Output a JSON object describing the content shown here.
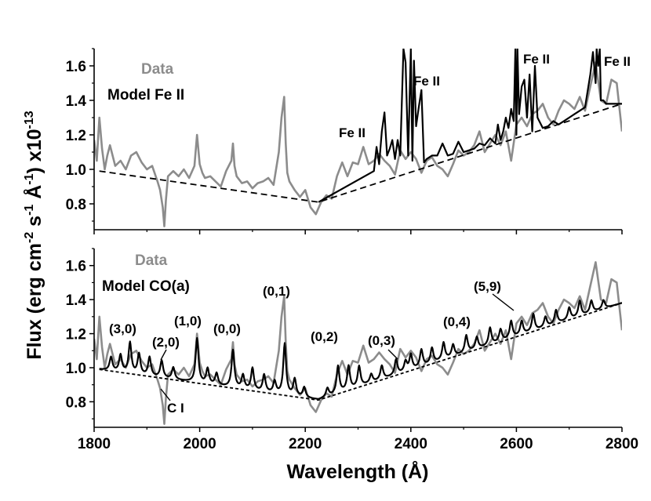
{
  "chart_data": [
    {
      "type": "line",
      "panel": "top",
      "xlim": [
        1800,
        2800
      ],
      "ylim": [
        0.65,
        1.7
      ],
      "yticks": [
        "0.8",
        "1.0",
        "1.2",
        "1.4",
        "1.6"
      ],
      "ytick_values": [
        0.8,
        1.0,
        1.2,
        1.4,
        1.6
      ],
      "legend": [
        {
          "label": "Data",
          "color": "#8c8c8c"
        },
        {
          "label": "Model Fe II",
          "color": "#000000"
        }
      ],
      "annotations": [
        "Fe II",
        "Fe II",
        "Fe II",
        "Fe II"
      ],
      "series": [
        {
          "name": "Data",
          "color": "#8c8c8c",
          "x": [
            1800,
            1805,
            1810,
            1815,
            1820,
            1825,
            1830,
            1840,
            1850,
            1860,
            1870,
            1880,
            1890,
            1900,
            1910,
            1920,
            1925,
            1930,
            1933,
            1936,
            1940,
            1950,
            1960,
            1970,
            1980,
            1990,
            1995,
            2000,
            2005,
            2010,
            2020,
            2030,
            2040,
            2050,
            2060,
            2063,
            2066,
            2070,
            2080,
            2090,
            2100,
            2110,
            2120,
            2130,
            2140,
            2150,
            2155,
            2160,
            2163,
            2166,
            2170,
            2180,
            2190,
            2200,
            2210,
            2220,
            2230,
            2240,
            2250,
            2260,
            2270,
            2280,
            2290,
            2300,
            2310,
            2320,
            2330,
            2340,
            2350,
            2360,
            2370,
            2380,
            2390,
            2400,
            2410,
            2420,
            2430,
            2440,
            2450,
            2460,
            2470,
            2480,
            2490,
            2500,
            2510,
            2520,
            2530,
            2540,
            2550,
            2560,
            2570,
            2580,
            2590,
            2600,
            2610,
            2620,
            2630,
            2640,
            2650,
            2660,
            2670,
            2680,
            2690,
            2700,
            2710,
            2720,
            2730,
            2740,
            2750,
            2760,
            2770,
            2780,
            2790,
            2800
          ],
          "y": [
            1.17,
            1.05,
            1.3,
            1.12,
            1.0,
            1.08,
            1.14,
            1.02,
            1.05,
            1.0,
            1.08,
            1.1,
            1.04,
            1.0,
            1.02,
            0.93,
            0.88,
            0.78,
            0.67,
            0.82,
            0.96,
            0.99,
            0.96,
            1.0,
            0.95,
            1.02,
            1.2,
            1.03,
            0.98,
            0.95,
            0.96,
            0.93,
            0.9,
            0.99,
            1.05,
            1.15,
            1.02,
            0.96,
            0.92,
            0.93,
            0.89,
            0.92,
            0.93,
            0.95,
            0.91,
            1.1,
            1.3,
            1.42,
            1.15,
            0.98,
            0.93,
            0.88,
            0.84,
            0.88,
            0.78,
            0.74,
            0.81,
            0.85,
            0.83,
            0.96,
            1.04,
            0.96,
            1.04,
            1.03,
            1.13,
            1.03,
            1.05,
            1.09,
            1.05,
            1.02,
            0.97,
            1.11,
            1.06,
            1.1,
            1.06,
            0.98,
            1.05,
            1.07,
            1.02,
            1.0,
            0.96,
            1.03,
            1.11,
            1.08,
            1.1,
            1.14,
            1.22,
            1.1,
            1.15,
            1.2,
            1.14,
            1.22,
            1.05,
            1.26,
            1.3,
            1.25,
            1.32,
            1.34,
            1.38,
            1.3,
            1.26,
            1.34,
            1.4,
            1.38,
            1.35,
            1.42,
            1.34,
            1.48,
            1.62,
            1.4,
            1.38,
            1.52,
            1.5,
            1.22
          ]
        },
        {
          "name": "Model Fe II",
          "color": "#000000",
          "x": [
            2225,
            2330,
            2335,
            2340,
            2345,
            2350,
            2355,
            2360,
            2365,
            2370,
            2375,
            2380,
            2383,
            2386,
            2390,
            2395,
            2400,
            2403,
            2406,
            2410,
            2415,
            2420,
            2425,
            2430,
            2440,
            2450,
            2460,
            2470,
            2480,
            2490,
            2500,
            2510,
            2520,
            2530,
            2540,
            2550,
            2560,
            2565,
            2570,
            2575,
            2580,
            2585,
            2590,
            2595,
            2598,
            2600,
            2602,
            2605,
            2610,
            2615,
            2620,
            2625,
            2630,
            2635,
            2640,
            2650,
            2660,
            2670,
            2680,
            2690,
            2700,
            2710,
            2720,
            2730,
            2740,
            2745,
            2750,
            2752,
            2755,
            2758,
            2760,
            2765,
            2770,
            2780,
            2790,
            2800
          ],
          "y": [
            0.81,
            0.99,
            1.13,
            1.03,
            1.22,
            1.33,
            1.08,
            1.12,
            1.17,
            1.06,
            1.17,
            1.08,
            1.4,
            1.7,
            1.62,
            1.08,
            1.7,
            1.05,
            1.63,
            1.25,
            1.36,
            1.46,
            1.04,
            1.06,
            1.08,
            1.08,
            1.15,
            1.08,
            1.09,
            1.16,
            1.1,
            1.11,
            1.12,
            1.15,
            1.14,
            1.18,
            1.15,
            1.26,
            1.17,
            1.22,
            1.3,
            1.24,
            1.35,
            1.28,
            1.7,
            1.2,
            1.7,
            1.32,
            1.48,
            1.52,
            1.3,
            1.55,
            1.22,
            1.6,
            1.3,
            1.24,
            1.25,
            1.28,
            1.26,
            1.28,
            1.3,
            1.32,
            1.34,
            1.36,
            1.55,
            1.68,
            1.5,
            1.7,
            1.6,
            1.7,
            1.4,
            1.4,
            1.38,
            1.38,
            1.38,
            1.38
          ]
        },
        {
          "name": "Continuum",
          "color": "#000000",
          "dashed": true,
          "x": [
            1810,
            2225,
            2800
          ],
          "y": [
            0.99,
            0.81,
            1.38
          ]
        }
      ]
    },
    {
      "type": "line",
      "panel": "bottom",
      "xlim": [
        1800,
        2800
      ],
      "ylim": [
        0.65,
        1.7
      ],
      "xticks": [
        "1800",
        "2000",
        "2200",
        "2400",
        "2600",
        "2800"
      ],
      "xtick_values": [
        1800,
        2000,
        2200,
        2400,
        2600,
        2800
      ],
      "yticks": [
        "0.8",
        "1.0",
        "1.2",
        "1.4",
        "1.6"
      ],
      "ytick_values": [
        0.8,
        1.0,
        1.2,
        1.4,
        1.6
      ],
      "legend": [
        {
          "label": "Data",
          "color": "#8c8c8c"
        },
        {
          "label": "Model CO(a)",
          "color": "#000000"
        }
      ],
      "annotations": [
        "(3,0)",
        "(2,0)",
        "(1,0)",
        "(0,0)",
        "(0,1)",
        "(0,2)",
        "(0,3)",
        "(0,4)",
        "(5,9)",
        "C I"
      ],
      "series": [
        {
          "name": "Data",
          "color": "#8c8c8c",
          "x": [
            1800,
            1805,
            1810,
            1815,
            1820,
            1825,
            1830,
            1840,
            1850,
            1860,
            1870,
            1880,
            1890,
            1900,
            1910,
            1920,
            1925,
            1930,
            1933,
            1936,
            1940,
            1950,
            1960,
            1970,
            1980,
            1990,
            1995,
            2000,
            2005,
            2010,
            2020,
            2030,
            2040,
            2050,
            2060,
            2063,
            2066,
            2070,
            2080,
            2090,
            2100,
            2110,
            2120,
            2130,
            2140,
            2150,
            2155,
            2160,
            2163,
            2166,
            2170,
            2180,
            2190,
            2200,
            2210,
            2220,
            2230,
            2240,
            2250,
            2260,
            2270,
            2280,
            2290,
            2300,
            2310,
            2320,
            2330,
            2340,
            2350,
            2360,
            2370,
            2380,
            2390,
            2400,
            2410,
            2420,
            2430,
            2440,
            2450,
            2460,
            2470,
            2480,
            2490,
            2500,
            2510,
            2520,
            2530,
            2540,
            2550,
            2560,
            2570,
            2580,
            2590,
            2600,
            2610,
            2620,
            2630,
            2640,
            2650,
            2660,
            2670,
            2680,
            2690,
            2700,
            2710,
            2720,
            2730,
            2740,
            2750,
            2760,
            2770,
            2780,
            2790,
            2800
          ],
          "y": [
            1.17,
            1.05,
            1.3,
            1.12,
            1.0,
            1.08,
            1.14,
            1.02,
            1.05,
            1.0,
            1.08,
            1.1,
            1.04,
            1.0,
            1.02,
            0.93,
            0.88,
            0.78,
            0.67,
            0.82,
            0.96,
            0.99,
            0.96,
            1.0,
            0.95,
            1.02,
            1.2,
            1.03,
            0.98,
            0.95,
            0.96,
            0.93,
            0.9,
            0.99,
            1.05,
            1.15,
            1.02,
            0.96,
            0.92,
            0.93,
            0.89,
            0.92,
            0.93,
            0.95,
            0.91,
            1.1,
            1.3,
            1.42,
            1.15,
            0.98,
            0.93,
            0.88,
            0.84,
            0.88,
            0.78,
            0.74,
            0.81,
            0.85,
            0.83,
            0.96,
            1.04,
            0.96,
            1.04,
            1.03,
            1.13,
            1.03,
            1.05,
            1.09,
            1.05,
            1.02,
            0.97,
            1.11,
            1.06,
            1.1,
            1.06,
            0.98,
            1.05,
            1.07,
            1.02,
            1.0,
            0.96,
            1.03,
            1.11,
            1.08,
            1.1,
            1.14,
            1.22,
            1.1,
            1.15,
            1.2,
            1.14,
            1.22,
            1.05,
            1.26,
            1.3,
            1.25,
            1.32,
            1.34,
            1.38,
            1.3,
            1.26,
            1.34,
            1.4,
            1.38,
            1.35,
            1.42,
            1.34,
            1.48,
            1.62,
            1.4,
            1.38,
            1.52,
            1.5,
            1.22
          ]
        },
        {
          "name": "Model CO(a)",
          "color": "#000000",
          "continuum": {
            "x": [
              1810,
              2225,
              2800
            ],
            "y": [
              0.99,
              0.81,
              1.38
            ]
          },
          "peaks": [
            {
              "x": 1832,
              "h": 0.08
            },
            {
              "x": 1850,
              "h": 0.1
            },
            {
              "x": 1868,
              "h": 0.18
            },
            {
              "x": 1885,
              "h": 0.12
            },
            {
              "x": 1905,
              "h": 0.11
            },
            {
              "x": 1928,
              "h": 0.1
            },
            {
              "x": 1950,
              "h": 0.07
            },
            {
              "x": 1995,
              "h": 0.26
            },
            {
              "x": 2015,
              "h": 0.09
            },
            {
              "x": 2032,
              "h": 0.07
            },
            {
              "x": 2063,
              "h": 0.22
            },
            {
              "x": 2082,
              "h": 0.08
            },
            {
              "x": 2100,
              "h": 0.13
            },
            {
              "x": 2122,
              "h": 0.1
            },
            {
              "x": 2142,
              "h": 0.07
            },
            {
              "x": 2161,
              "h": 0.3
            },
            {
              "x": 2180,
              "h": 0.1
            },
            {
              "x": 2198,
              "h": 0.06
            },
            {
              "x": 2242,
              "h": 0.05
            },
            {
              "x": 2262,
              "h": 0.16
            },
            {
              "x": 2282,
              "h": 0.14
            },
            {
              "x": 2302,
              "h": 0.12
            },
            {
              "x": 2325,
              "h": 0.05
            },
            {
              "x": 2345,
              "h": 0.08
            },
            {
              "x": 2372,
              "h": 0.09
            },
            {
              "x": 2390,
              "h": 0.06
            },
            {
              "x": 2400,
              "h": 0.09
            },
            {
              "x": 2420,
              "h": 0.1
            },
            {
              "x": 2440,
              "h": 0.09
            },
            {
              "x": 2462,
              "h": 0.1
            },
            {
              "x": 2480,
              "h": 0.07
            },
            {
              "x": 2505,
              "h": 0.1
            },
            {
              "x": 2525,
              "h": 0.07
            },
            {
              "x": 2550,
              "h": 0.1
            },
            {
              "x": 2570,
              "h": 0.07
            },
            {
              "x": 2590,
              "h": 0.1
            },
            {
              "x": 2610,
              "h": 0.08
            },
            {
              "x": 2632,
              "h": 0.1
            },
            {
              "x": 2655,
              "h": 0.06
            },
            {
              "x": 2675,
              "h": 0.08
            },
            {
              "x": 2700,
              "h": 0.07
            },
            {
              "x": 2720,
              "h": 0.09
            },
            {
              "x": 2742,
              "h": 0.07
            },
            {
              "x": 2765,
              "h": 0.05
            }
          ]
        },
        {
          "name": "Continuum",
          "color": "#000000",
          "dashed": true,
          "x": [
            1810,
            2225,
            2800
          ],
          "y": [
            0.99,
            0.81,
            1.38
          ]
        }
      ]
    }
  ],
  "y_axis_title": {
    "flux": "Flux (erg cm",
    "exp1": "-2",
    "s": " s",
    "exp2": "-1",
    "angstrom": " Å",
    "exp3": "-1",
    "tail": ") x10",
    "exp4": "-13"
  },
  "x_axis_title": "Wavelength (Å)"
}
